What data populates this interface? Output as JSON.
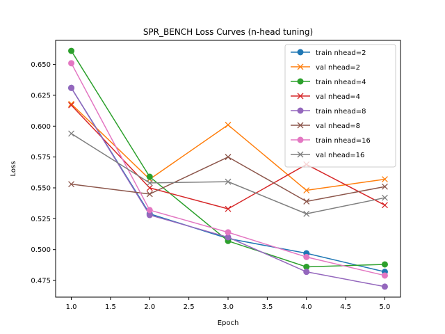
{
  "chart_data": {
    "type": "line",
    "title": "SPR_BENCH Loss Curves (n-head tuning)",
    "xlabel": "Epoch",
    "ylabel": "Loss",
    "x": [
      1,
      2,
      3,
      4,
      5
    ],
    "xlim": [
      0.8,
      5.2
    ],
    "ylim": [
      0.4615,
      0.6695
    ],
    "xticks": [
      "1.0",
      "1.5",
      "2.0",
      "2.5",
      "3.0",
      "3.5",
      "4.0",
      "4.5",
      "5.0"
    ],
    "yticks": [
      "0.475",
      "0.500",
      "0.525",
      "0.550",
      "0.575",
      "0.600",
      "0.625",
      "0.650"
    ],
    "grid": false,
    "legend_position": "top-right",
    "series": [
      {
        "name": "train nhead=2",
        "marker": "circle",
        "color": "#1f77b4",
        "values": [
          0.631,
          0.529,
          0.509,
          0.497,
          0.482
        ]
      },
      {
        "name": "val nhead=2",
        "marker": "x",
        "color": "#ff7f0e",
        "values": [
          0.618,
          0.557,
          0.601,
          0.548,
          0.557
        ]
      },
      {
        "name": "train nhead=4",
        "marker": "circle",
        "color": "#2ca02c",
        "values": [
          0.661,
          0.559,
          0.507,
          0.486,
          0.488
        ]
      },
      {
        "name": "val nhead=4",
        "marker": "x",
        "color": "#d62728",
        "values": [
          0.617,
          0.55,
          0.533,
          0.569,
          0.536
        ]
      },
      {
        "name": "train nhead=8",
        "marker": "circle",
        "color": "#9467bd",
        "values": [
          0.631,
          0.528,
          0.51,
          0.482,
          0.47
        ]
      },
      {
        "name": "val nhead=8",
        "marker": "x",
        "color": "#8c564b",
        "values": [
          0.553,
          0.545,
          0.575,
          0.539,
          0.551
        ]
      },
      {
        "name": "train nhead=16",
        "marker": "circle",
        "color": "#e377c2",
        "values": [
          0.651,
          0.532,
          0.514,
          0.494,
          0.479
        ]
      },
      {
        "name": "val nhead=16",
        "marker": "x",
        "color": "#7f7f7f",
        "values": [
          0.594,
          0.554,
          0.555,
          0.529,
          0.542
        ]
      }
    ]
  }
}
